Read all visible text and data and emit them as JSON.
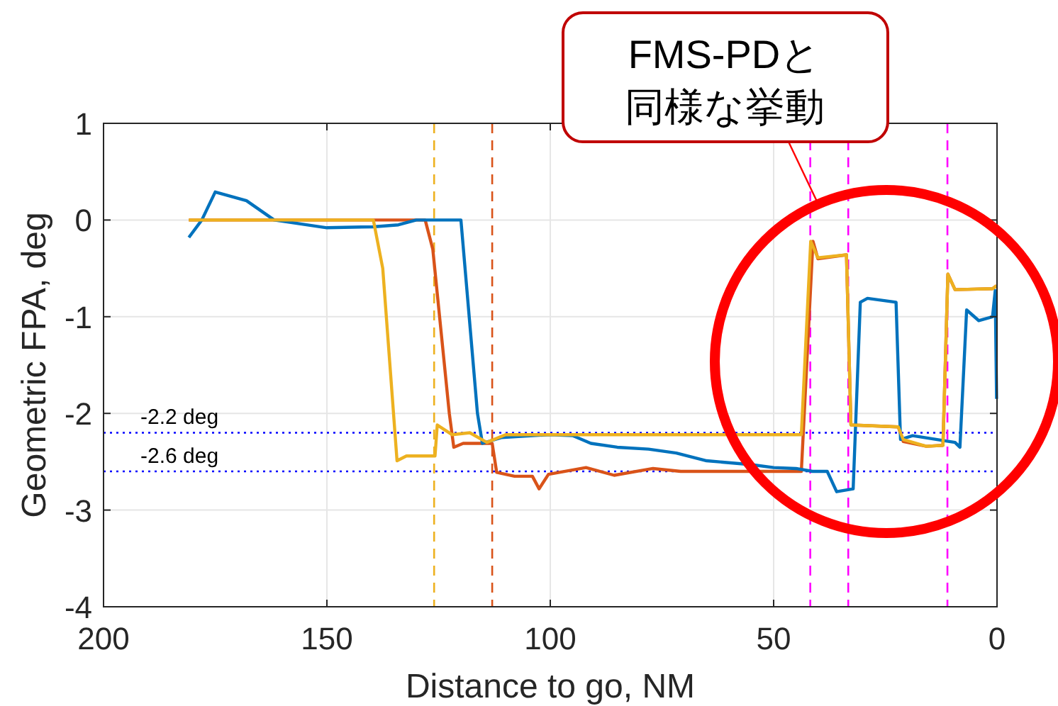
{
  "chart_data": {
    "type": "line",
    "xlabel": "Distance to go, NM",
    "ylabel": "Geometric FPA, deg",
    "xlim": [
      200,
      0
    ],
    "xticks": [
      200,
      150,
      100,
      50,
      0
    ],
    "ylim": [
      -4,
      1
    ],
    "yticks": [
      -4,
      -3,
      -2,
      -1,
      0,
      1
    ],
    "grid": true,
    "line_style": "solid",
    "annotations": [
      "FMS-PDと",
      "同様な挙動"
    ],
    "ref_lines": [
      {
        "axis": "y",
        "value": -2.2,
        "label": "-2.2 deg",
        "color": "#0000ff",
        "line_style": "dotted"
      },
      {
        "axis": "y",
        "value": -2.6,
        "label": "-2.6 deg",
        "color": "#0000ff",
        "line_style": "dotted"
      },
      {
        "axis": "x",
        "value": 126,
        "color": "#edb120",
        "line_style": "dashed"
      },
      {
        "axis": "x",
        "value": 113,
        "color": "#d95319",
        "line_style": "dashed"
      },
      {
        "axis": "x",
        "value": 41.8,
        "color": "#ff00ff",
        "line_style": "dashed"
      },
      {
        "axis": "x",
        "value": 33.3,
        "color": "#ff00ff",
        "line_style": "dashed"
      },
      {
        "axis": "x",
        "value": 11.1,
        "color": "#ff00ff",
        "line_style": "dashed"
      }
    ],
    "series": [
      {
        "color": "#d95319",
        "x": [
          180.9,
          170,
          150,
          135,
          128,
          126.3,
          122.6,
          121.6,
          119.5,
          113,
          112,
          108,
          104,
          102.5,
          100.4,
          92,
          85.7,
          77,
          70.8,
          60,
          43.8,
          41.2,
          40.1,
          33.7,
          32.7,
          22.1,
          21,
          15.8,
          12.1,
          11,
          9.4,
          1,
          0.1
        ],
        "values": [
          0,
          0,
          0,
          0,
          0,
          -0.3,
          -2.0,
          -2.35,
          -2.31,
          -2.31,
          -2.61,
          -2.65,
          -2.65,
          -2.78,
          -2.63,
          -2.56,
          -2.64,
          -2.57,
          -2.6,
          -2.6,
          -2.6,
          -0.22,
          -0.4,
          -0.36,
          -2.12,
          -2.14,
          -2.29,
          -2.34,
          -2.33,
          -0.56,
          -0.72,
          -0.71,
          -0.68
        ]
      },
      {
        "color": "#0072bd",
        "x": [
          180.9,
          178,
          175,
          168,
          161.8,
          150,
          139.7,
          134,
          130,
          120,
          116.3,
          115.2,
          111,
          100,
          95,
          90.9,
          85,
          78,
          71.8,
          65,
          55,
          50,
          45,
          41.3,
          38,
          35.9,
          32.2,
          30.6,
          29,
          22.6,
          21.6,
          18.9,
          9.4,
          8.3,
          6.8,
          4.1,
          1,
          0.4,
          0.1
        ],
        "values": [
          -0.18,
          0.0,
          0.29,
          0.2,
          0.0,
          -0.08,
          -0.07,
          -0.05,
          0,
          0,
          -2.0,
          -2.31,
          -2.25,
          -2.22,
          -2.23,
          -2.31,
          -2.35,
          -2.37,
          -2.41,
          -2.49,
          -2.53,
          -2.56,
          -2.57,
          -2.6,
          -2.6,
          -2.81,
          -2.78,
          -0.85,
          -0.81,
          -0.85,
          -2.27,
          -2.23,
          -2.3,
          -2.35,
          -0.93,
          -1.04,
          -1.0,
          -0.73,
          -1.85
        ]
      },
      {
        "color": "#edb120",
        "x": [
          180.9,
          160,
          139.6,
          137.5,
          134.3,
          132.2,
          125.8,
          125.3,
          122,
          118,
          114.2,
          110,
          90,
          70,
          43.8,
          41.7,
          40.1,
          33.7,
          32.7,
          22.1,
          21,
          15.8,
          12.1,
          11,
          9.4,
          1,
          0.1
        ],
        "values": [
          0,
          0,
          0,
          -0.5,
          -2.49,
          -2.44,
          -2.44,
          -2.12,
          -2.22,
          -2.2,
          -2.3,
          -2.22,
          -2.22,
          -2.22,
          -2.22,
          -0.22,
          -0.39,
          -0.36,
          -2.12,
          -2.14,
          -2.27,
          -2.34,
          -2.33,
          -0.56,
          -0.72,
          -0.71,
          -0.68
        ]
      }
    ]
  }
}
